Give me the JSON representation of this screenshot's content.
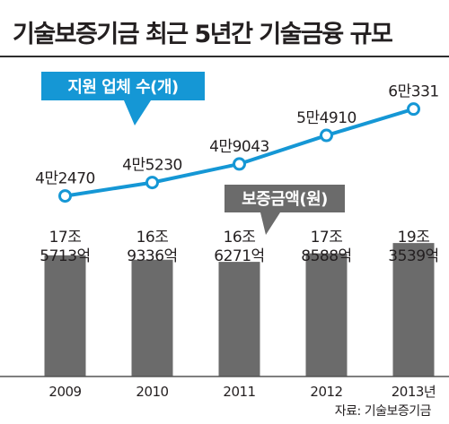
{
  "title": "기술보증기금 최근 5년간 기술금융 규모",
  "source": "자료: 기술보증기금",
  "colors": {
    "line": "#1597d5",
    "bar": "#6b6b6b",
    "line_callout_bg": "#1597d5",
    "bar_callout_bg": "#6b6b6b",
    "text": "#231f20",
    "baseline": "#555555"
  },
  "chart_data": {
    "type": "bar",
    "categories": [
      "2009",
      "2010",
      "2011",
      "2012",
      "2013년"
    ],
    "series": [
      {
        "name": "보증금액(원)",
        "type": "bar",
        "values": [
          175713,
          169336,
          166271,
          178588,
          193539
        ],
        "unit": "억",
        "data_labels": [
          [
            "17조",
            "5713억"
          ],
          [
            "16조",
            "9336억"
          ],
          [
            "16조",
            "6271억"
          ],
          [
            "17조",
            "8588억"
          ],
          [
            "19조",
            "3539억"
          ]
        ]
      },
      {
        "name": "지원 업체 수(개)",
        "type": "line",
        "values": [
          42470,
          45230,
          49043,
          54910,
          60331
        ],
        "data_labels": [
          "4만2470",
          "4만5230",
          "4만9043",
          "5만4910",
          "6만331"
        ]
      }
    ],
    "bar_ylim": [
      0,
      195000
    ],
    "line_ylim": [
      40000,
      61000
    ],
    "legend": "callout labels",
    "grid": false
  }
}
